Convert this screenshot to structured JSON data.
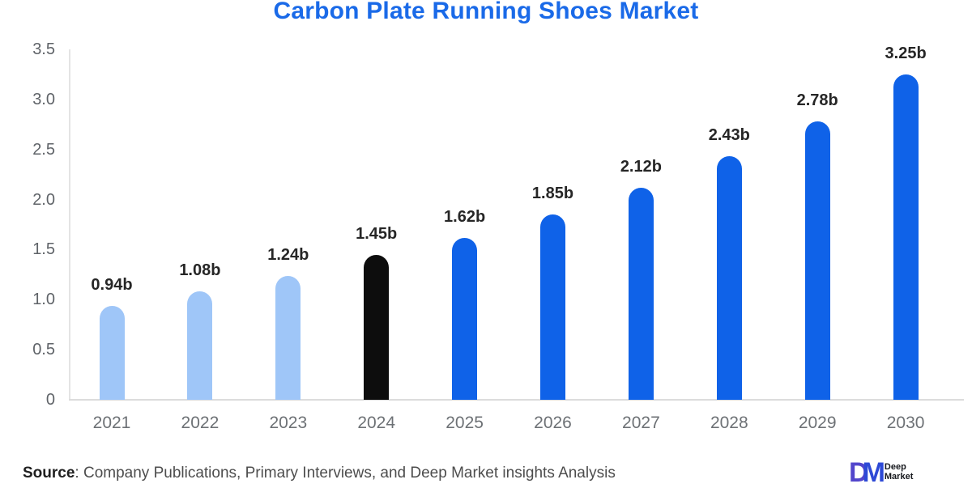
{
  "chart_data": {
    "type": "bar",
    "title": "Carbon Plate Running Shoes Market",
    "categories": [
      "2021",
      "2022",
      "2023",
      "2024",
      "2025",
      "2026",
      "2027",
      "2028",
      "2029",
      "2030"
    ],
    "values": [
      0.94,
      1.08,
      1.24,
      1.45,
      1.62,
      1.85,
      2.12,
      2.43,
      2.78,
      3.25
    ],
    "bar_labels": [
      "0.94b",
      "1.08b",
      "1.24b",
      "1.45b",
      "1.62b",
      "1.85b",
      "2.12b",
      "2.43b",
      "2.78b",
      "3.25b"
    ],
    "bar_colors": [
      "#9fc6f8",
      "#9fc6f8",
      "#9fc6f8",
      "#0d0d0d",
      "#0f62e8",
      "#0f62e8",
      "#0f62e8",
      "#0f62e8",
      "#0f62e8",
      "#0f62e8"
    ],
    "ylim": [
      0,
      3.5
    ],
    "ytick_labels": [
      "3.5",
      "3.0",
      "2.5",
      "2.0",
      "1.5",
      "1.0",
      "0.5",
      "0"
    ],
    "ytick_values": [
      3.5,
      3.0,
      2.5,
      2.0,
      1.5,
      1.0,
      0.5,
      0
    ],
    "xlabel": "",
    "ylabel": "",
    "grid": false,
    "legend": "none"
  },
  "colors": {
    "title": "#1a6ae8",
    "bar_light_blue": "#9fc6f8",
    "bar_black": "#0d0d0d",
    "bar_blue": "#0f62e8",
    "axis_line": "#dcdcdc",
    "y_tick_text": "#5f6368",
    "x_tick_text": "#6d7175",
    "value_label_text": "#262626",
    "source_text": "#4d4d4d",
    "logo_d": "#5246cc",
    "logo_m": "#2d49d6"
  },
  "footer": {
    "source_label": "Source",
    "source_rest": ": Company Publications, Primary Interviews, and Deep Market insights Analysis",
    "logo": {
      "monogram_d": "D",
      "monogram_m": "M",
      "name_top": "Deep",
      "name_bottom": "Market"
    }
  }
}
